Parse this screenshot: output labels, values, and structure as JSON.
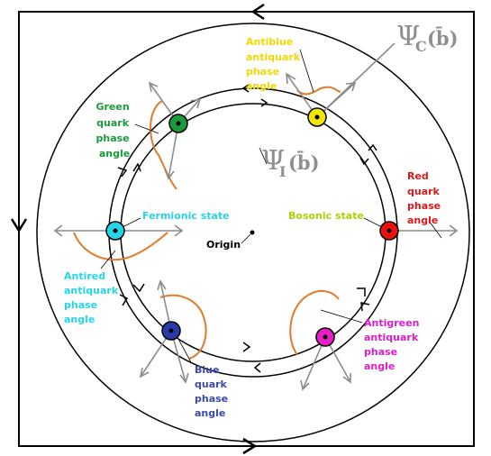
{
  "colors": {
    "frame": "#000000",
    "arrow_gray": "#8c8c8c",
    "arc_orange": "#e07b2a",
    "green": "#1a9a3a",
    "yellow": "#f2e600",
    "red": "#e81010",
    "cyan": "#27d4e6",
    "blue": "#2a3aa8",
    "magenta": "#e81ec8",
    "label_green": "#1a9a3a",
    "label_yellow": "#f2d800",
    "label_red": "#d81a1a",
    "label_cyan": "#27d4e6",
    "label_blue": "#3a4aa8",
    "label_magenta": "#d81ec8",
    "label_bosonic": "#a8d400",
    "label_psi": "#8f8f8f"
  },
  "labels": {
    "green_quark": [
      "Green",
      "quark",
      "phase",
      "angle"
    ],
    "antiblue_antiquark": [
      "Antiblue",
      "antiquark",
      "phase",
      "angle"
    ],
    "red_quark": [
      "Red",
      "quark",
      "phase",
      "angle"
    ],
    "antired_antiquark": [
      "Antired",
      "antiquark",
      "phase",
      "angle"
    ],
    "blue_quark": [
      "Blue",
      "quark",
      "phase",
      "angle"
    ],
    "antigreen_antiquark": [
      "Antigreen",
      "antiquark",
      "phase",
      "angle"
    ],
    "fermionic_state": "Fermionic state",
    "bosonic_state": "Bosonic state",
    "origin": "Origin"
  },
  "psi_c": {
    "symbol": "Ψ",
    "subscript": "C",
    "argument": "(b̄)"
  },
  "psi_i": {
    "symbol": "Ψ",
    "subscript": "I",
    "argument": "(b̄)"
  }
}
